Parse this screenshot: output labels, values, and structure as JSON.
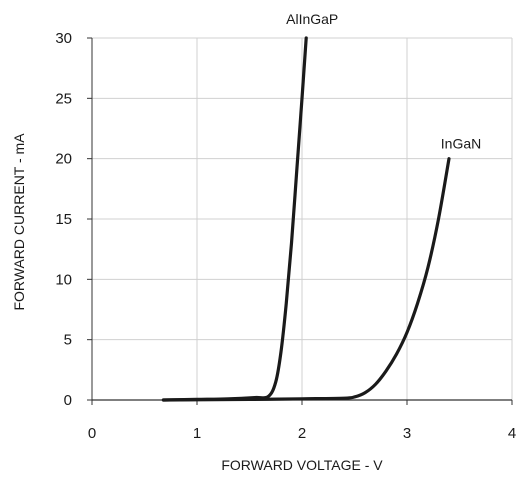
{
  "chart_data": {
    "type": "line",
    "title": "",
    "xlabel": "FORWARD VOLTAGE - V",
    "ylabel": "FORWARD CURRENT  -  mA",
    "xlim": [
      0,
      4
    ],
    "ylim": [
      0,
      30
    ],
    "xticks": [
      0,
      1,
      2,
      3,
      4
    ],
    "yticks": [
      0,
      5,
      10,
      15,
      20,
      25,
      30
    ],
    "xtick_labels": [
      "0",
      "1",
      "2",
      "3",
      "4"
    ],
    "ytick_labels": [
      "0",
      "5",
      "10",
      "15",
      "20",
      "25",
      "30"
    ],
    "grid": true,
    "legend": "none",
    "line_color": "#1a1a1a",
    "grid_color": "#d0d0d0",
    "series": [
      {
        "name": "AlInGaP",
        "x": [
          0.68,
          1.0,
          1.3,
          1.55,
          1.68,
          1.75,
          1.8,
          1.85,
          1.9,
          1.95,
          2.0,
          2.04
        ],
        "y": [
          0.0,
          0.05,
          0.1,
          0.2,
          0.3,
          1.5,
          4.0,
          8.0,
          13.0,
          19.0,
          25.0,
          30.0
        ]
      },
      {
        "name": "InGaN",
        "x": [
          0.68,
          1.0,
          1.5,
          2.0,
          2.4,
          2.5,
          2.6,
          2.7,
          2.8,
          2.9,
          3.0,
          3.1,
          3.2,
          3.3,
          3.4
        ],
        "y": [
          0.0,
          0.02,
          0.05,
          0.1,
          0.15,
          0.25,
          0.6,
          1.3,
          2.4,
          3.8,
          5.6,
          8.0,
          11.0,
          15.0,
          20.0
        ]
      }
    ]
  }
}
